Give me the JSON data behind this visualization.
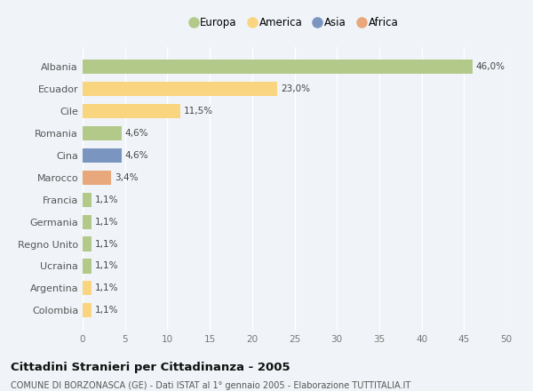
{
  "categories": [
    "Albania",
    "Ecuador",
    "Cile",
    "Romania",
    "Cina",
    "Marocco",
    "Francia",
    "Germania",
    "Regno Unito",
    "Ucraina",
    "Argentina",
    "Colombia"
  ],
  "values": [
    46.0,
    23.0,
    11.5,
    4.6,
    4.6,
    3.4,
    1.1,
    1.1,
    1.1,
    1.1,
    1.1,
    1.1
  ],
  "labels": [
    "46,0%",
    "23,0%",
    "11,5%",
    "4,6%",
    "4,6%",
    "3,4%",
    "1,1%",
    "1,1%",
    "1,1%",
    "1,1%",
    "1,1%",
    "1,1%"
  ],
  "colors": [
    "#b2c98a",
    "#f9d580",
    "#f9d580",
    "#b2c98a",
    "#7a95c0",
    "#e8a87c",
    "#b2c98a",
    "#b2c98a",
    "#b2c98a",
    "#b2c98a",
    "#f9d580",
    "#f9d580"
  ],
  "legend": [
    {
      "label": "Europa",
      "color": "#b2c98a"
    },
    {
      "label": "America",
      "color": "#f9d580"
    },
    {
      "label": "Asia",
      "color": "#7a95c0"
    },
    {
      "label": "Africa",
      "color": "#e8a87c"
    }
  ],
  "xlim": [
    0,
    50
  ],
  "xticks": [
    0,
    5,
    10,
    15,
    20,
    25,
    30,
    35,
    40,
    45,
    50
  ],
  "title": "Cittadini Stranieri per Cittadinanza - 2005",
  "subtitle": "COMUNE DI BORZONASCA (GE) - Dati ISTAT al 1° gennaio 2005 - Elaborazione TUTTITALIA.IT",
  "background_color": "#f0f4f8",
  "plot_bg_color": "#f0f4f8",
  "grid_color": "#ffffff",
  "bar_height": 0.65
}
